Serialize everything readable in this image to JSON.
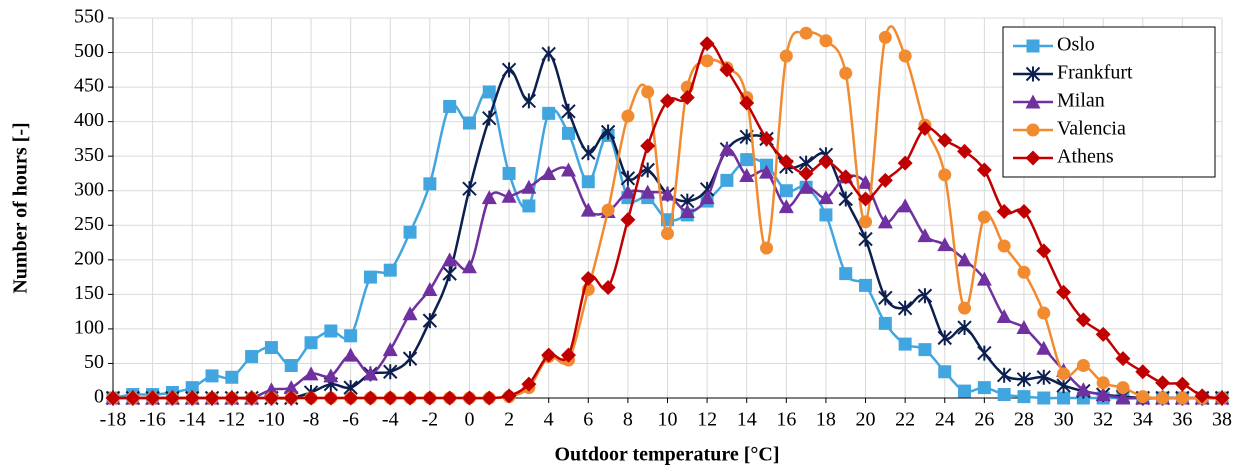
{
  "chart_data": {
    "type": "line",
    "xlabel": "Outdoor temperature [°C]",
    "ylabel": "Number of hours [-]",
    "x": [
      -18,
      -17,
      -16,
      -15,
      -14,
      -13,
      -12,
      -11,
      -10,
      -9,
      -8,
      -7,
      -6,
      -5,
      -4,
      -3,
      -2,
      -1,
      0,
      1,
      2,
      3,
      4,
      5,
      6,
      7,
      8,
      9,
      10,
      11,
      12,
      13,
      14,
      15,
      16,
      17,
      18,
      19,
      20,
      21,
      22,
      23,
      24,
      25,
      26,
      27,
      28,
      29,
      30,
      31,
      32,
      33,
      34,
      35,
      36,
      37,
      38
    ],
    "xlim": [
      -18,
      38
    ],
    "xticks": [
      -18,
      -16,
      -14,
      -12,
      -10,
      -8,
      -6,
      -4,
      -2,
      0,
      2,
      4,
      6,
      8,
      10,
      12,
      14,
      16,
      18,
      20,
      22,
      24,
      26,
      28,
      30,
      32,
      34,
      36,
      38
    ],
    "ylim": [
      0,
      550
    ],
    "yticks": [
      0,
      50,
      100,
      150,
      200,
      250,
      300,
      350,
      400,
      450,
      500,
      550
    ],
    "grid": true,
    "smooth": true,
    "legend": "top-right",
    "series": [
      {
        "name": "Oslo",
        "color": "#41a6e0",
        "marker": "square",
        "values": [
          0,
          5,
          5,
          8,
          15,
          32,
          30,
          60,
          73,
          47,
          80,
          97,
          90,
          175,
          185,
          240,
          310,
          422,
          398,
          443,
          325,
          278,
          412,
          383,
          313,
          380,
          290,
          290,
          258,
          265,
          285,
          315,
          345,
          337,
          300,
          305,
          265,
          180,
          163,
          108,
          78,
          70,
          38,
          10,
          15,
          5,
          2,
          0,
          0,
          0,
          0,
          0,
          0,
          0,
          0,
          0,
          0
        ]
      },
      {
        "name": "Frankfurt",
        "color": "#0c1f4f",
        "marker": "star",
        "values": [
          0,
          0,
          0,
          0,
          0,
          0,
          0,
          0,
          0,
          0,
          8,
          20,
          15,
          35,
          38,
          57,
          112,
          180,
          303,
          405,
          475,
          430,
          498,
          415,
          355,
          385,
          318,
          330,
          295,
          285,
          302,
          360,
          378,
          375,
          335,
          340,
          352,
          288,
          230,
          145,
          130,
          148,
          87,
          102,
          65,
          33,
          27,
          30,
          18,
          10,
          5,
          2,
          0,
          0,
          0,
          0,
          0
        ]
      },
      {
        "name": "Milan",
        "color": "#7030a0",
        "marker": "triangle",
        "values": [
          0,
          0,
          0,
          0,
          0,
          0,
          0,
          0,
          12,
          15,
          35,
          32,
          62,
          35,
          70,
          122,
          157,
          200,
          190,
          290,
          292,
          305,
          325,
          330,
          272,
          270,
          298,
          298,
          295,
          270,
          290,
          360,
          322,
          327,
          277,
          305,
          290,
          320,
          312,
          255,
          278,
          235,
          222,
          200,
          172,
          118,
          102,
          72,
          40,
          12,
          5,
          0,
          0,
          0,
          0,
          0,
          0
        ]
      },
      {
        "name": "Valencia",
        "color": "#f28a30",
        "marker": "circle",
        "values": [
          0,
          0,
          0,
          0,
          0,
          0,
          0,
          0,
          0,
          0,
          0,
          0,
          0,
          0,
          0,
          0,
          0,
          0,
          0,
          0,
          2,
          15,
          60,
          55,
          157,
          272,
          408,
          443,
          238,
          450,
          488,
          478,
          435,
          217,
          495,
          528,
          517,
          470,
          255,
          522,
          495,
          395,
          323,
          130,
          262,
          220,
          182,
          123,
          35,
          47,
          22,
          15,
          2,
          0,
          0,
          0,
          0
        ]
      },
      {
        "name": "Athens",
        "color": "#c00000",
        "marker": "diamond",
        "values": [
          0,
          0,
          0,
          0,
          0,
          0,
          0,
          0,
          0,
          0,
          0,
          0,
          0,
          0,
          0,
          0,
          0,
          0,
          0,
          0,
          3,
          20,
          62,
          62,
          173,
          160,
          258,
          365,
          430,
          435,
          513,
          475,
          427,
          375,
          342,
          325,
          342,
          320,
          288,
          315,
          340,
          390,
          373,
          357,
          330,
          270,
          270,
          213,
          153,
          113,
          92,
          57,
          38,
          22,
          20,
          3,
          0
        ]
      }
    ]
  }
}
